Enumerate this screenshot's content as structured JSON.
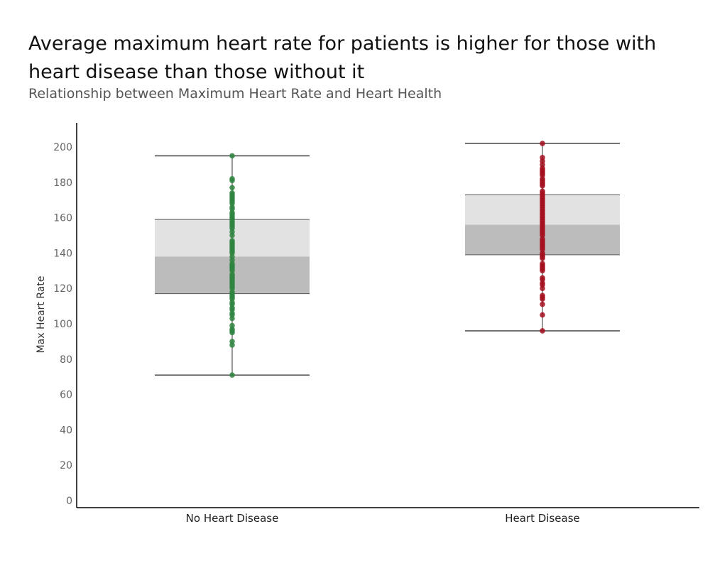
{
  "header": {
    "title": "Average maximum heart rate for patients is higher for those with heart disease than those without it",
    "subtitle": "Relationship between Maximum Heart Rate and Heart Health"
  },
  "chart_data": {
    "type": "box",
    "ylabel": "Max Heart Rate",
    "xlabel": "",
    "ylim": [
      0,
      212
    ],
    "yticks": [
      0,
      20,
      40,
      60,
      80,
      100,
      120,
      140,
      160,
      180,
      200
    ],
    "grid": false,
    "categories": [
      "No Heart Disease",
      "Heart Disease"
    ],
    "boxes": [
      {
        "category": "No Heart Disease",
        "color": "#2e8540",
        "min": 71,
        "q1": 117,
        "median": 138,
        "q3": 159,
        "max": 195,
        "points": [
          71,
          88,
          90,
          95,
          96,
          97,
          99,
          103,
          105,
          106,
          108,
          109,
          111,
          112,
          114,
          115,
          116,
          117,
          118,
          120,
          121,
          122,
          123,
          124,
          125,
          126,
          127,
          128,
          130,
          131,
          132,
          133,
          134,
          136,
          138,
          140,
          141,
          142,
          143,
          144,
          145,
          146,
          147,
          150,
          152,
          154,
          155,
          156,
          157,
          158,
          159,
          160,
          161,
          162,
          163,
          165,
          166,
          168,
          169,
          170,
          171,
          172,
          173,
          174,
          177,
          181,
          182,
          195
        ]
      },
      {
        "category": "Heart Disease",
        "color": "#a50f1f",
        "min": 96,
        "q1": 139,
        "median": 156,
        "q3": 173,
        "max": 202,
        "points": [
          96,
          105,
          111,
          114,
          115,
          116,
          120,
          122,
          123,
          125,
          126,
          130,
          131,
          132,
          133,
          134,
          137,
          138,
          139,
          140,
          142,
          143,
          144,
          145,
          146,
          147,
          148,
          150,
          151,
          152,
          153,
          154,
          155,
          156,
          157,
          158,
          159,
          160,
          161,
          162,
          163,
          164,
          165,
          166,
          167,
          168,
          169,
          170,
          171,
          172,
          173,
          174,
          175,
          178,
          179,
          180,
          181,
          182,
          184,
          185,
          186,
          187,
          188,
          190,
          192,
          194,
          202
        ]
      }
    ]
  }
}
